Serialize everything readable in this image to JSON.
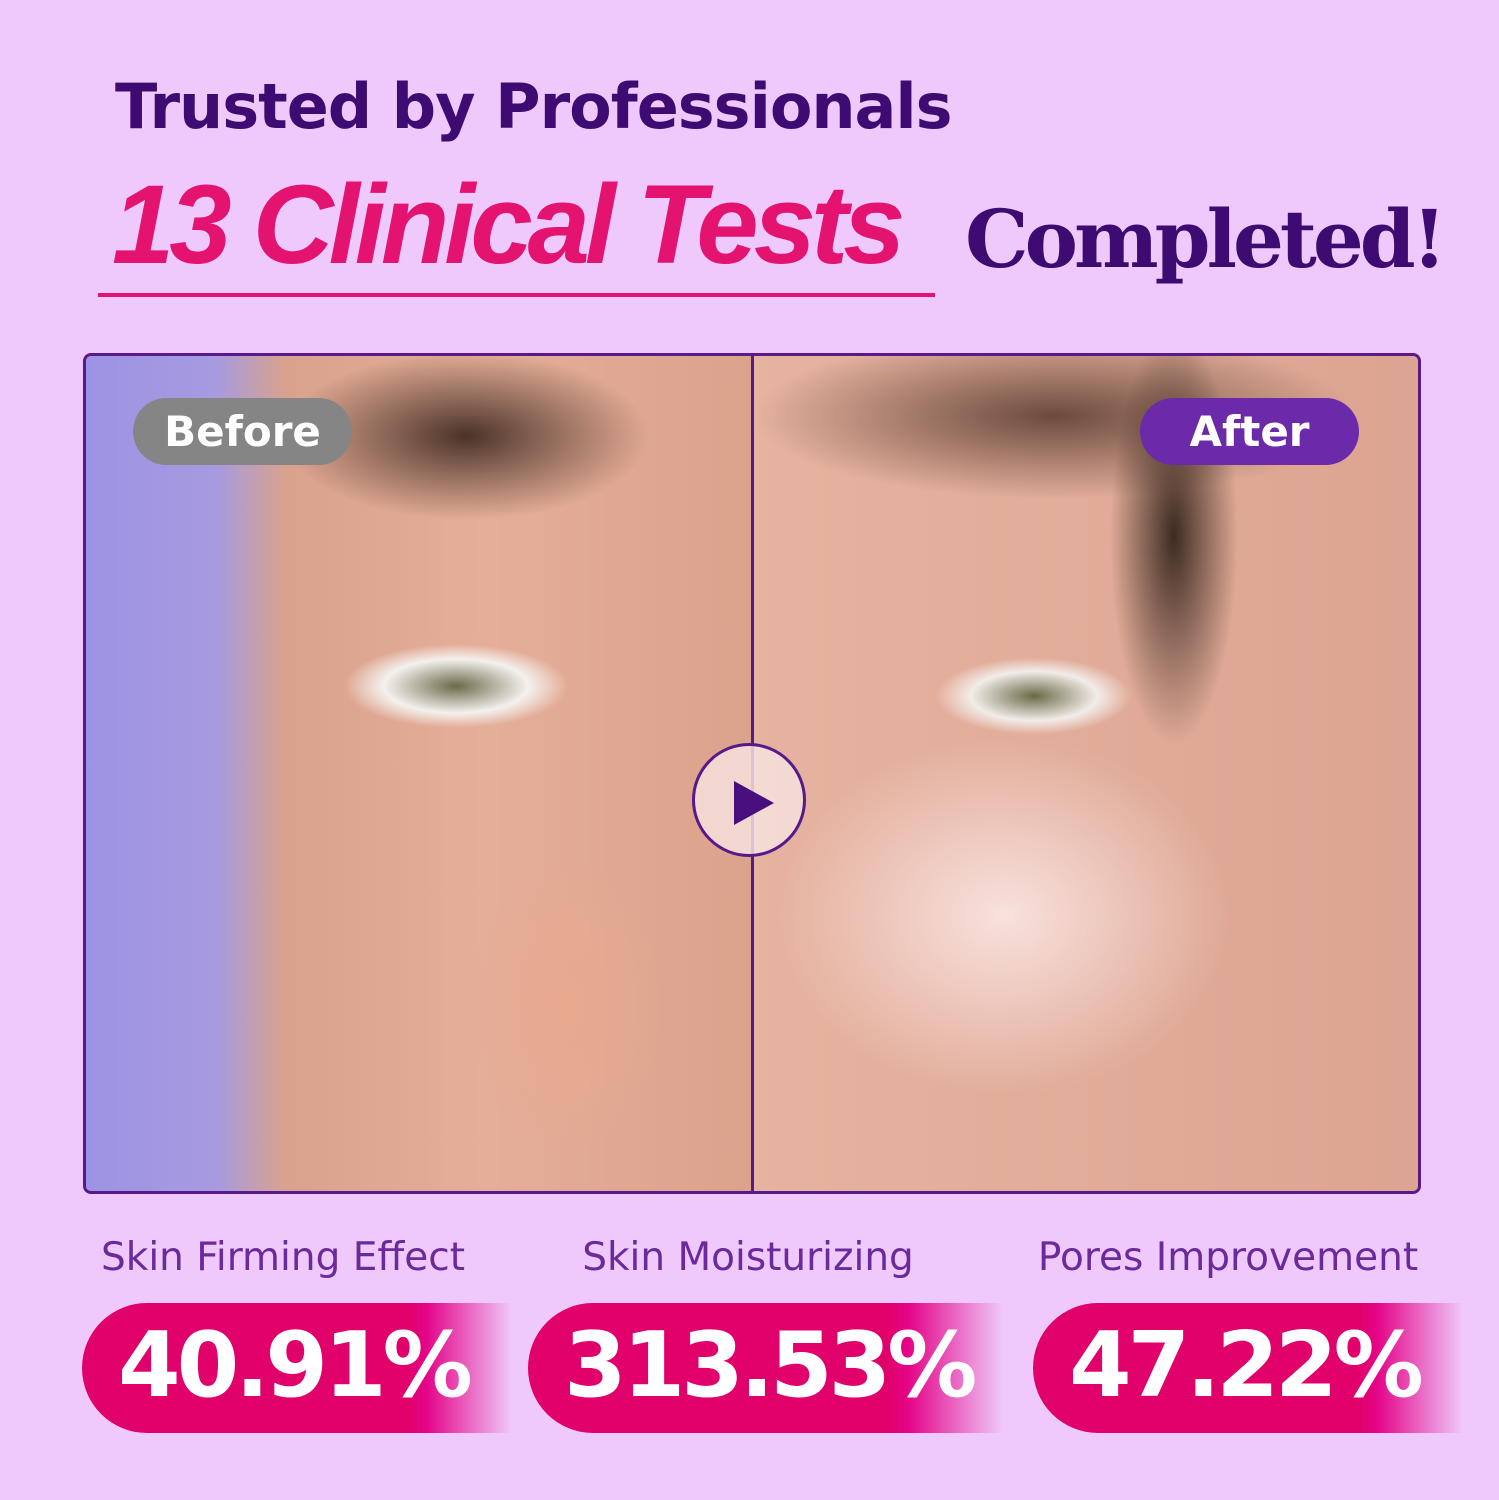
{
  "headline": {
    "line1": "Trusted by Professionals",
    "highlight": "13 Clinical Tests",
    "suffix": "Completed!"
  },
  "comparison": {
    "before_label": "Before",
    "after_label": "After",
    "play_icon": "play-icon"
  },
  "colors": {
    "background": "#efc9fb",
    "dark_purple": "#3d0b72",
    "accent_pink": "#e3136f",
    "after_pill": "#6b2aa9",
    "before_pill": "#858585"
  },
  "stats": [
    {
      "label": "Skin Firming Effect",
      "value": "40.91%"
    },
    {
      "label": "Skin Moisturizing",
      "value": "313.53%"
    },
    {
      "label": "Pores Improvement",
      "value": "47.22%"
    }
  ]
}
